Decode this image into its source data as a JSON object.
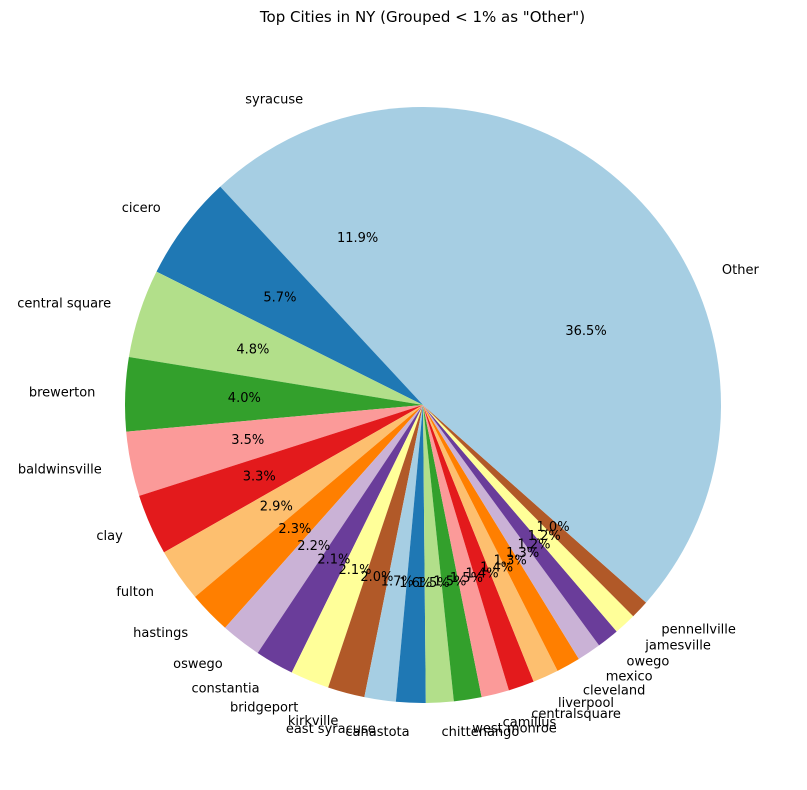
{
  "chart_data": {
    "type": "pie",
    "title": "Top Cities in NY (Grouped < 1% as \"Other\")",
    "categories": [
      "syracuse",
      "cicero",
      "central square",
      "brewerton",
      "baldwinsville",
      "clay",
      "fulton",
      "hastings",
      "oswego",
      "constantia",
      "bridgeport",
      "kirkville",
      "east syracuse",
      "canastota",
      "chittenango",
      "west monroe",
      "camillus",
      "centralsquare",
      "liverpool",
      "cleveland",
      "mexico",
      "owego",
      "jamesville",
      "pennellville",
      "Other"
    ],
    "values": [
      11.9,
      5.7,
      4.8,
      4.0,
      3.5,
      3.3,
      2.9,
      2.3,
      2.2,
      2.1,
      2.1,
      2.0,
      1.7,
      1.6,
      1.5,
      1.5,
      1.5,
      1.4,
      1.4,
      1.3,
      1.3,
      1.2,
      1.2,
      1.0,
      36.5
    ],
    "value_labels": [
      "11.9%",
      "5.7%",
      "4.8%",
      "4.0%",
      "3.5%",
      "3.3%",
      "2.9%",
      "2.3%",
      "2.2%",
      "2.1%",
      "2.1%",
      "2.0%",
      "1.7%",
      "1.6%",
      "1.5%",
      "1.5%",
      "1.5%",
      "1.4%",
      "1.4%",
      "1.3%",
      "1.3%",
      "1.2%",
      "1.2%",
      "1.0%",
      "36.5%"
    ],
    "colors": [
      "#a6cee3",
      "#1f78b4",
      "#b2df8a",
      "#33a02c",
      "#fb9a99",
      "#e31a1c",
      "#fdbf6f",
      "#ff7f00",
      "#cab2d6",
      "#6a3d9a",
      "#ffff99",
      "#b15928"
    ],
    "start_angle_deg": 90,
    "direction": "counterclockwise",
    "legend": "none"
  }
}
